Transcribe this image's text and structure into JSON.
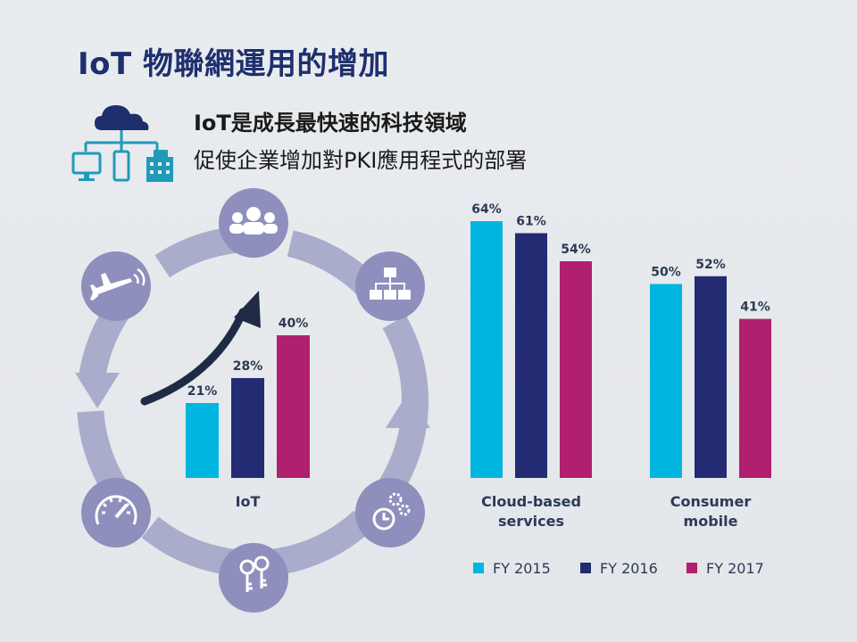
{
  "header": {
    "title": "IoT 物聯網運用的增加",
    "subtitle_line1": "IoT是成長最快速的科技領域",
    "subtitle_line2": "促使企業增加對PKI應用程式的部署"
  },
  "colors": {
    "FY 2015": "#00b6e0",
    "FY 2016": "#232b72",
    "FY 2017": "#b0206f"
  },
  "cycle_icons": [
    "users-icon",
    "org-chart-icon",
    "gears-clock-icon",
    "keys-icon",
    "speedometer-icon",
    "airplane-wireless-icon"
  ],
  "chart_data": {
    "type": "bar",
    "categories": [
      "IoT",
      "Cloud-based services",
      "Consumer mobile"
    ],
    "category_labels": [
      [
        "IoT"
      ],
      [
        "Cloud-based",
        "services"
      ],
      [
        "Consumer",
        "mobile"
      ]
    ],
    "series": [
      {
        "name": "FY 2015",
        "values": [
          21,
          64,
          50
        ]
      },
      {
        "name": "FY 2016",
        "values": [
          28,
          61,
          52
        ]
      },
      {
        "name": "FY 2017",
        "values": [
          40,
          54,
          41
        ]
      }
    ],
    "value_suffix": "%",
    "ylim": [
      0,
      100
    ],
    "legend": "bottom"
  }
}
